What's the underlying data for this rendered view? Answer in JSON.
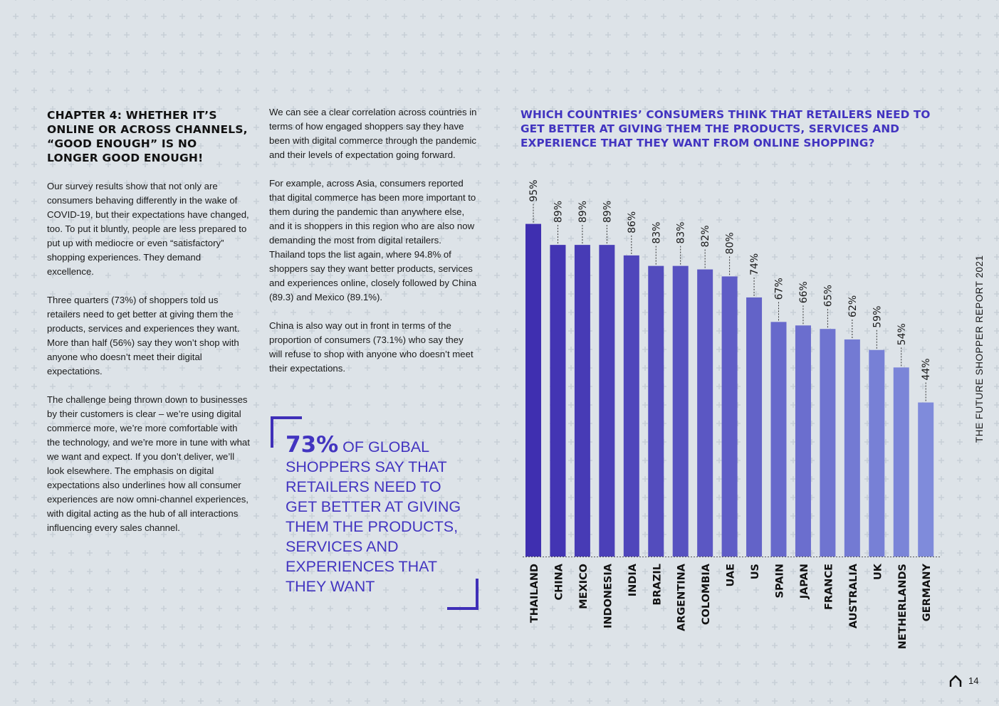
{
  "chapter": {
    "title": "CHAPTER 4: WHETHER IT’S ONLINE OR ACROSS CHANNELS, “GOOD ENOUGH” IS NO LONGER GOOD ENOUGH!"
  },
  "column1": {
    "paragraphs": [
      "Our survey results show that not only are consumers behaving differently in the wake of COVID-19, but their expectations have changed, too. To put it bluntly, people are less prepared to put up with mediocre or even “satisfactory” shopping experiences. They demand excellence.",
      "Three quarters (73%) of shoppers told us retailers need to get better at giving them the products, services and experiences they want. More than half (56%) say they won’t shop with anyone who doesn’t meet their digital expectations.",
      "The challenge being thrown down to businesses by their customers is clear – we’re using digital commerce more, we’re more comfortable with the technology, and we’re more in tune with what we want and expect. If you don’t deliver, we’ll look elsewhere. The emphasis on digital expectations also underlines how all consumer experiences are now omni-channel experiences, with digital acting as the hub of all interactions influencing every sales channel."
    ]
  },
  "column2": {
    "paragraphs": [
      "We can see a clear correlation across countries in terms of how engaged shoppers say they have been with digital commerce through the pandemic and their levels of expectation going forward.",
      "For example, across Asia, consumers reported that digital commerce has been more important to them during the pandemic than anywhere else, and it is shoppers in this region who are also now demanding the most from digital retailers. Thailand tops the list again, where 94.8% of shoppers say they want better products, services and experiences online, closely followed by China (89.3) and Mexico (89.1%).",
      "China is also way out in front in terms of the proportion of consumers (73.1%) who say they will refuse to shop with anyone who doesn’t meet their expectations."
    ]
  },
  "callout": {
    "highlight": "73%",
    "text": " OF GLOBAL SHOPPERS SAY THAT RETAILERS NEED TO GET BETTER AT GIVING THEM THE PRODUCTS, SERVICES AND EXPERIENCES THAT THEY WANT"
  },
  "side_title": "THE FUTURE SHOPPER REPORT 2021",
  "page_number": "14",
  "icons": {
    "home": "home-icon"
  },
  "colors": {
    "background": "#dde3e8",
    "accent": "#4234c0",
    "bar_dark": "#3f2fb0",
    "bar_light": "#7f8bdb"
  },
  "chart_data": {
    "type": "bar",
    "title": "WHICH COUNTRIES’ CONSUMERS THINK THAT RETAILERS NEED TO GET BETTER AT GIVING THEM THE PRODUCTS, SERVICES AND EXPERIENCE THAT THEY WANT FROM ONLINE SHOPPING?",
    "categories": [
      "THAILAND",
      "CHINA",
      "MEXICO",
      "INDONESIA",
      "INDIA",
      "BRAZIL",
      "ARGENTINA",
      "COLOMBIA",
      "UAE",
      "US",
      "SPAIN",
      "JAPAN",
      "FRANCE",
      "AUSTRALIA",
      "UK",
      "NETHERLANDS",
      "GERMANY"
    ],
    "values": [
      95,
      89,
      89,
      89,
      86,
      83,
      83,
      82,
      80,
      74,
      67,
      66,
      65,
      62,
      59,
      54,
      44
    ],
    "labels": [
      "95%",
      "89%",
      "89%",
      "89%",
      "86%",
      "83%",
      "83%",
      "82%",
      "80%",
      "74%",
      "67%",
      "66%",
      "65%",
      "62%",
      "59%",
      "54%",
      "44%"
    ],
    "value_suffix": "%",
    "ylim": [
      0,
      100
    ],
    "xlabel": "",
    "ylabel": "",
    "grid": false,
    "legend": "none"
  }
}
